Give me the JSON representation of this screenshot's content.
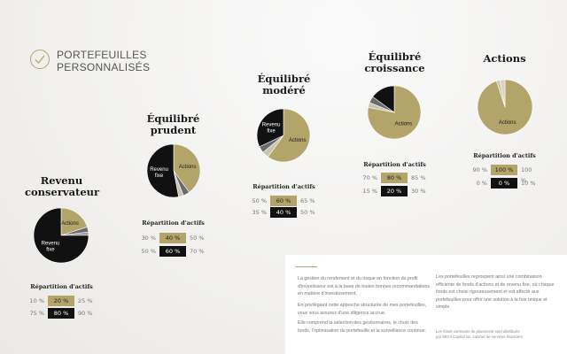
{
  "header": {
    "line1": "PORTEFEUILLES",
    "line2": "PERSONNALISÉS"
  },
  "colors": {
    "gold": "#b3a469",
    "black": "#111111",
    "accent_check": "#b7a46a"
  },
  "chart_data": [
    {
      "type": "pie",
      "title": "Revenu conservateur",
      "slices": [
        {
          "label": "Actions",
          "value": 20,
          "color": "#b3a469"
        },
        {
          "label": "",
          "value": 3,
          "color": "#6b6b6b"
        },
        {
          "label": "",
          "value": 2,
          "color": "#9c9c9c"
        },
        {
          "label": "Revenu fixe",
          "value": 75,
          "color": "#111111"
        }
      ],
      "repartition_title": "Répartition d'actifs",
      "rows": [
        {
          "lo": "10 %",
          "mid": "20 %",
          "hi": "25 %",
          "style": "gold"
        },
        {
          "lo": "75 %",
          "mid": "80 %",
          "hi": "90 %",
          "style": "black"
        }
      ]
    },
    {
      "type": "pie",
      "title": "Équilibré prudent",
      "slices": [
        {
          "label": "Actions",
          "value": 40,
          "color": "#b3a469"
        },
        {
          "label": "",
          "value": 4,
          "color": "#6b6b6b"
        },
        {
          "label": "",
          "value": 3,
          "color": "#c9c4b2"
        },
        {
          "label": "Revenu fixe",
          "value": 53,
          "color": "#111111"
        }
      ],
      "repartition_title": "Répartition d'actifs",
      "rows": [
        {
          "lo": "30 %",
          "mid": "40 %",
          "hi": "50 %",
          "style": "gold"
        },
        {
          "lo": "50 %",
          "mid": "60 %",
          "hi": "70 %",
          "style": "black"
        }
      ]
    },
    {
      "type": "pie",
      "title": "Équilibré modéré",
      "slices": [
        {
          "label": "Actions",
          "value": 60,
          "color": "#b3a469"
        },
        {
          "label": "",
          "value": 4,
          "color": "#c9c4b2"
        },
        {
          "label": "",
          "value": 4,
          "color": "#6b6b6b"
        },
        {
          "label": "Revenu fixe",
          "value": 32,
          "color": "#111111"
        }
      ],
      "repartition_title": "Répartition d'actifs",
      "rows": [
        {
          "lo": "50 %",
          "mid": "60 %",
          "hi": "65 %",
          "style": "gold"
        },
        {
          "lo": "35 %",
          "mid": "40 %",
          "hi": "50 %",
          "style": "black"
        }
      ]
    },
    {
      "type": "pie",
      "title": "Équilibré croissance",
      "slices": [
        {
          "label": "Actions",
          "value": 78,
          "color": "#b3a469"
        },
        {
          "label": "",
          "value": 3,
          "color": "#c9c4b2"
        },
        {
          "label": "",
          "value": 4,
          "color": "#6b6b6b"
        },
        {
          "label": "",
          "value": 15,
          "color": "#111111"
        }
      ],
      "repartition_title": "Répartition d'actifs",
      "rows": [
        {
          "lo": "70 %",
          "mid": "80 %",
          "hi": "85 %",
          "style": "gold"
        },
        {
          "lo": "15 %",
          "mid": "20 %",
          "hi": "30 %",
          "style": "black"
        }
      ]
    },
    {
      "type": "pie",
      "title": "Actions",
      "slices": [
        {
          "label": "Actions",
          "value": 95,
          "color": "#b3a469"
        },
        {
          "label": "",
          "value": 2,
          "color": "#c9c4b2"
        },
        {
          "label": "",
          "value": 3,
          "color": "#d8d2bd"
        }
      ],
      "repartition_title": "Répartition d'actifs",
      "rows": [
        {
          "lo": "90 %",
          "mid": "100 %",
          "hi": "100 %",
          "style": "gold"
        },
        {
          "lo": "0 %",
          "mid": "0 %",
          "hi": "10 %",
          "style": "black"
        }
      ]
    }
  ],
  "panel": {
    "p1": "La gestion du rendement et du risque en fonction du profil d'investisseur est à la base de toutes bonnes recommandations en matière d'investissement.",
    "p2": "En privilégiant cette approche structurée de mes portefeuilles, vous vous assurez d'une diligence accrue.",
    "p3": "Elle comprend la sélection des gestionnaires, le choix des fonds, l'optimisation du portefeuille et la surveillance continue.",
    "p4": "Les portefeuilles regroupent ainsi une combinaison efficiente de fonds d'actions et de revenu fixe, où chaque fonds est choisi rigoureusement et est affecté aux portefeuilles pour offrir une solution à la fois unique et simple.",
    "note": "Les fonds communs de placement sont distribués par MICA Capital inc. cabinet de services financiers"
  }
}
